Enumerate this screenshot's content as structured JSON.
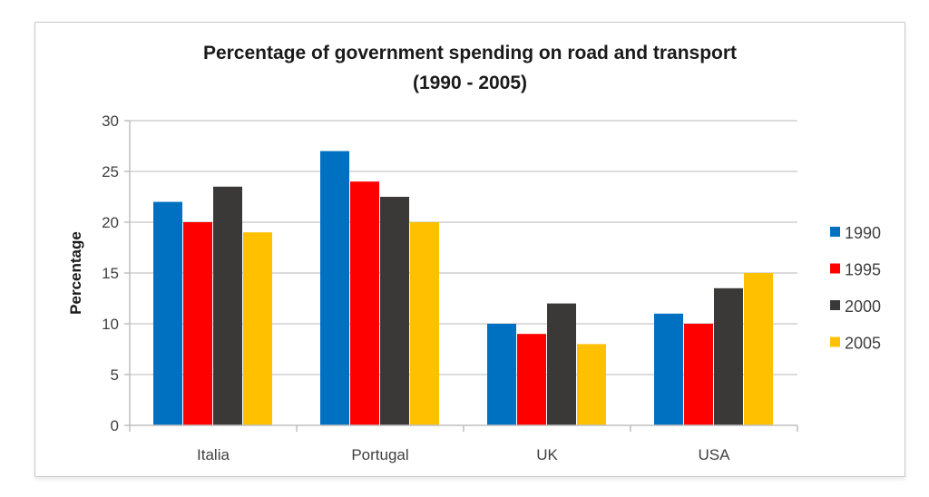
{
  "chart_data": {
    "type": "bar",
    "title": "Percentage of government spending on road and transport",
    "subtitle": "(1990 - 2005)",
    "xlabel": "",
    "ylabel": "Percentage",
    "ylim": [
      0,
      30
    ],
    "yticks": [
      0,
      5,
      10,
      15,
      20,
      25,
      30
    ],
    "grid": true,
    "legend_position": "right",
    "categories": [
      "Italia",
      "Portugal",
      "UK",
      "USA"
    ],
    "series": [
      {
        "name": "1990",
        "color": "#0070C0",
        "values": [
          22,
          27,
          10,
          11
        ]
      },
      {
        "name": "1995",
        "color": "#FF0000",
        "values": [
          20,
          24,
          9,
          10
        ]
      },
      {
        "name": "2000",
        "color": "#3B3838",
        "values": [
          23.5,
          22.5,
          12,
          13.5
        ]
      },
      {
        "name": "2005",
        "color": "#FFC000",
        "values": [
          19,
          20,
          8,
          15
        ]
      }
    ]
  }
}
